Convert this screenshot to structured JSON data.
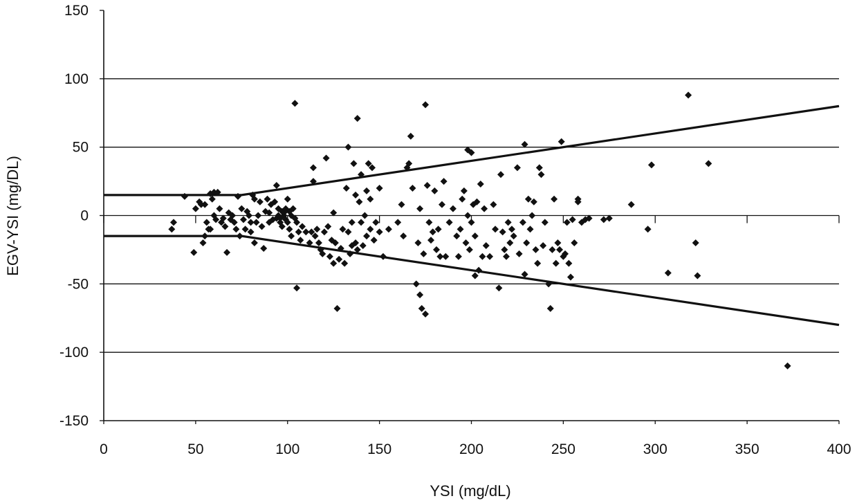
{
  "chart_data": {
    "type": "scatter",
    "title": "",
    "xlabel": "YSI (mg/dL)",
    "ylabel": "EGV-YSI (mg/DL)",
    "xlim": [
      0,
      400
    ],
    "ylim": [
      -150,
      150
    ],
    "x_ticks": [
      "0",
      "50",
      "100",
      "150",
      "200",
      "250",
      "300",
      "350",
      "400"
    ],
    "y_ticks": [
      "150",
      "100",
      "50",
      "0",
      "-50",
      "-100",
      "-150"
    ],
    "gridlines_y": [
      100,
      50,
      0,
      -50,
      -100
    ],
    "grid": "horizontal",
    "legend": "none",
    "marker": "diamond",
    "colors": {
      "points": "#111111",
      "grid": "#111111",
      "lines": "#111111"
    },
    "boundary_lines": [
      {
        "points": [
          [
            0,
            15
          ],
          [
            75,
            15
          ],
          [
            400,
            80
          ]
        ]
      },
      {
        "points": [
          [
            0,
            -15
          ],
          [
            75,
            -15
          ],
          [
            400,
            -80
          ]
        ]
      }
    ],
    "points": [
      [
        37,
        -10
      ],
      [
        38,
        -5
      ],
      [
        44,
        14
      ],
      [
        49,
        -27
      ],
      [
        50,
        5
      ],
      [
        52,
        10
      ],
      [
        53,
        8
      ],
      [
        54,
        -20
      ],
      [
        55,
        -15
      ],
      [
        55,
        8
      ],
      [
        56,
        -5
      ],
      [
        57,
        -10
      ],
      [
        58,
        16
      ],
      [
        58,
        -10
      ],
      [
        59,
        12
      ],
      [
        60,
        17
      ],
      [
        60,
        0
      ],
      [
        61,
        -3
      ],
      [
        62,
        17
      ],
      [
        63,
        5
      ],
      [
        64,
        -5
      ],
      [
        65,
        -2
      ],
      [
        66,
        -8
      ],
      [
        67,
        -27
      ],
      [
        68,
        2
      ],
      [
        69,
        -3
      ],
      [
        70,
        0
      ],
      [
        71,
        -5
      ],
      [
        72,
        -10
      ],
      [
        73,
        14
      ],
      [
        74,
        -15
      ],
      [
        75,
        5
      ],
      [
        76,
        -3
      ],
      [
        77,
        -10
      ],
      [
        78,
        3
      ],
      [
        79,
        0
      ],
      [
        80,
        -12
      ],
      [
        80,
        -5
      ],
      [
        81,
        15
      ],
      [
        82,
        12
      ],
      [
        82,
        -20
      ],
      [
        83,
        -5
      ],
      [
        84,
        0
      ],
      [
        85,
        10
      ],
      [
        86,
        -8
      ],
      [
        87,
        -24
      ],
      [
        88,
        3
      ],
      [
        89,
        12
      ],
      [
        90,
        -5
      ],
      [
        90,
        2
      ],
      [
        91,
        8
      ],
      [
        92,
        -3
      ],
      [
        93,
        10
      ],
      [
        94,
        22
      ],
      [
        94,
        -2
      ],
      [
        95,
        0
      ],
      [
        95,
        5
      ],
      [
        96,
        -5
      ],
      [
        96,
        -2
      ],
      [
        97,
        3
      ],
      [
        97,
        -8
      ],
      [
        98,
        0
      ],
      [
        98,
        2
      ],
      [
        99,
        -3
      ],
      [
        99,
        5
      ],
      [
        100,
        -5
      ],
      [
        100,
        12
      ],
      [
        101,
        -10
      ],
      [
        101,
        3
      ],
      [
        102,
        0
      ],
      [
        102,
        -15
      ],
      [
        103,
        5
      ],
      [
        104,
        82
      ],
      [
        104,
        -2
      ],
      [
        105,
        -5
      ],
      [
        105,
        -53
      ],
      [
        106,
        -12
      ],
      [
        107,
        -18
      ],
      [
        108,
        -8
      ],
      [
        110,
        -12
      ],
      [
        112,
        -20
      ],
      [
        113,
        -12
      ],
      [
        114,
        25
      ],
      [
        114,
        35
      ],
      [
        115,
        -15
      ],
      [
        116,
        -10
      ],
      [
        117,
        -20
      ],
      [
        118,
        -25
      ],
      [
        119,
        -28
      ],
      [
        120,
        -12
      ],
      [
        121,
        42
      ],
      [
        122,
        -8
      ],
      [
        123,
        -30
      ],
      [
        124,
        -18
      ],
      [
        125,
        -35
      ],
      [
        125,
        2
      ],
      [
        126,
        -20
      ],
      [
        127,
        -68
      ],
      [
        128,
        -32
      ],
      [
        129,
        -24
      ],
      [
        130,
        -10
      ],
      [
        131,
        -35
      ],
      [
        132,
        20
      ],
      [
        133,
        50
      ],
      [
        133,
        -12
      ],
      [
        134,
        -28
      ],
      [
        135,
        -5
      ],
      [
        135,
        -22
      ],
      [
        136,
        38
      ],
      [
        137,
        15
      ],
      [
        137,
        -20
      ],
      [
        138,
        -25
      ],
      [
        138,
        71
      ],
      [
        139,
        10
      ],
      [
        140,
        30
      ],
      [
        140,
        -5
      ],
      [
        141,
        -22
      ],
      [
        142,
        0
      ],
      [
        143,
        18
      ],
      [
        143,
        -15
      ],
      [
        144,
        38
      ],
      [
        145,
        12
      ],
      [
        145,
        -10
      ],
      [
        146,
        35
      ],
      [
        147,
        -18
      ],
      [
        148,
        -5
      ],
      [
        150,
        20
      ],
      [
        150,
        -12
      ],
      [
        152,
        -30
      ],
      [
        155,
        -10
      ],
      [
        160,
        -5
      ],
      [
        162,
        8
      ],
      [
        163,
        -15
      ],
      [
        165,
        35
      ],
      [
        166,
        38
      ],
      [
        167,
        58
      ],
      [
        168,
        20
      ],
      [
        170,
        -50
      ],
      [
        171,
        -20
      ],
      [
        172,
        -58
      ],
      [
        172,
        5
      ],
      [
        173,
        -68
      ],
      [
        174,
        -28
      ],
      [
        175,
        -72
      ],
      [
        175,
        81
      ],
      [
        176,
        22
      ],
      [
        177,
        -5
      ],
      [
        178,
        -18
      ],
      [
        179,
        -12
      ],
      [
        180,
        18
      ],
      [
        181,
        -25
      ],
      [
        182,
        -10
      ],
      [
        183,
        -30
      ],
      [
        184,
        8
      ],
      [
        185,
        25
      ],
      [
        186,
        -30
      ],
      [
        188,
        -5
      ],
      [
        190,
        5
      ],
      [
        192,
        -15
      ],
      [
        193,
        -30
      ],
      [
        194,
        -10
      ],
      [
        195,
        12
      ],
      [
        196,
        18
      ],
      [
        197,
        -20
      ],
      [
        198,
        48
      ],
      [
        198,
        0
      ],
      [
        199,
        -25
      ],
      [
        200,
        46
      ],
      [
        200,
        -5
      ],
      [
        201,
        8
      ],
      [
        202,
        -15
      ],
      [
        202,
        -44
      ],
      [
        203,
        10
      ],
      [
        204,
        -40
      ],
      [
        205,
        23
      ],
      [
        206,
        -30
      ],
      [
        207,
        5
      ],
      [
        208,
        -22
      ],
      [
        210,
        -30
      ],
      [
        212,
        8
      ],
      [
        213,
        -10
      ],
      [
        215,
        -53
      ],
      [
        216,
        30
      ],
      [
        217,
        -12
      ],
      [
        218,
        -25
      ],
      [
        219,
        -30
      ],
      [
        220,
        -5
      ],
      [
        221,
        -20
      ],
      [
        222,
        -10
      ],
      [
        223,
        -15
      ],
      [
        225,
        35
      ],
      [
        226,
        -28
      ],
      [
        228,
        -5
      ],
      [
        229,
        52
      ],
      [
        229,
        -43
      ],
      [
        230,
        -20
      ],
      [
        231,
        12
      ],
      [
        232,
        -10
      ],
      [
        233,
        0
      ],
      [
        234,
        10
      ],
      [
        235,
        -25
      ],
      [
        236,
        -35
      ],
      [
        237,
        35
      ],
      [
        238,
        30
      ],
      [
        239,
        -22
      ],
      [
        240,
        -5
      ],
      [
        242,
        -50
      ],
      [
        243,
        -68
      ],
      [
        244,
        -25
      ],
      [
        245,
        12
      ],
      [
        246,
        -35
      ],
      [
        247,
        -20
      ],
      [
        248,
        -25
      ],
      [
        249,
        54
      ],
      [
        250,
        -30
      ],
      [
        251,
        -28
      ],
      [
        252,
        -5
      ],
      [
        253,
        -35
      ],
      [
        254,
        -45
      ],
      [
        255,
        -3
      ],
      [
        256,
        -20
      ],
      [
        258,
        10
      ],
      [
        258,
        12
      ],
      [
        260,
        -5
      ],
      [
        262,
        -3
      ],
      [
        264,
        -2
      ],
      [
        272,
        -3
      ],
      [
        275,
        -2
      ],
      [
        287,
        8
      ],
      [
        296,
        -10
      ],
      [
        298,
        37
      ],
      [
        307,
        -42
      ],
      [
        318,
        88
      ],
      [
        322,
        -20
      ],
      [
        323,
        -44
      ],
      [
        329,
        38
      ],
      [
        372,
        -110
      ]
    ]
  }
}
